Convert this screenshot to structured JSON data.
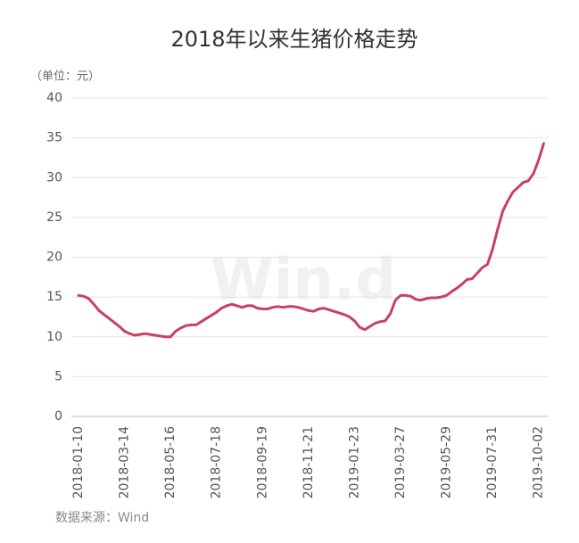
{
  "chart_data": {
    "type": "line",
    "title": "2018年以来生猪价格走势",
    "unit_label": "（单位：元）",
    "source": "数据来源：Wind",
    "watermark": "Win.d",
    "categories": [
      "2018-01-10",
      null,
      null,
      null,
      null,
      null,
      null,
      null,
      null,
      "2018-03-14",
      null,
      null,
      null,
      null,
      null,
      null,
      null,
      null,
      "2018-05-16",
      null,
      null,
      null,
      null,
      null,
      null,
      null,
      null,
      "2018-07-18",
      null,
      null,
      null,
      null,
      null,
      null,
      null,
      null,
      "2018-09-19",
      null,
      null,
      null,
      null,
      null,
      null,
      null,
      null,
      "2018-11-21",
      null,
      null,
      null,
      null,
      null,
      null,
      null,
      null,
      "2019-01-23",
      null,
      null,
      null,
      null,
      null,
      null,
      null,
      null,
      "2019-03-27",
      null,
      null,
      null,
      null,
      null,
      null,
      null,
      null,
      "2019-05-29",
      null,
      null,
      null,
      null,
      null,
      null,
      null,
      null,
      "2019-07-31",
      null,
      null,
      null,
      null,
      null,
      null,
      null,
      null,
      "2019-10-02",
      null
    ],
    "series": [
      {
        "name": "生猪价格",
        "color": "#c8415f",
        "values": [
          15.2,
          15.1,
          14.8,
          14.1,
          13.3,
          12.8,
          12.3,
          11.8,
          11.3,
          10.7,
          10.4,
          10.2,
          10.3,
          10.4,
          10.3,
          10.2,
          10.1,
          10.0,
          10.0,
          10.7,
          11.1,
          11.4,
          11.5,
          11.5,
          11.9,
          12.3,
          12.7,
          13.1,
          13.6,
          13.9,
          14.1,
          13.9,
          13.7,
          13.9,
          13.9,
          13.6,
          13.5,
          13.5,
          13.7,
          13.8,
          13.7,
          13.8,
          13.8,
          13.7,
          13.5,
          13.3,
          13.2,
          13.5,
          13.6,
          13.4,
          13.2,
          13.0,
          12.8,
          12.5,
          12.0,
          11.2,
          10.9,
          11.3,
          11.7,
          11.9,
          12.0,
          12.9,
          14.6,
          15.2,
          15.2,
          15.1,
          14.7,
          14.6,
          14.8,
          14.9,
          14.9,
          15.0,
          15.2,
          15.7,
          16.1,
          16.6,
          17.2,
          17.3,
          18.0,
          18.7,
          19.1,
          21.0,
          23.5,
          25.8,
          27.1,
          28.2,
          28.8,
          29.4,
          29.6,
          30.5,
          32.2,
          34.3
        ]
      }
    ],
    "ylim": [
      0,
      40
    ],
    "yticks": [
      0,
      5,
      10,
      15,
      20,
      25,
      30,
      35,
      40
    ],
    "grid": true
  }
}
